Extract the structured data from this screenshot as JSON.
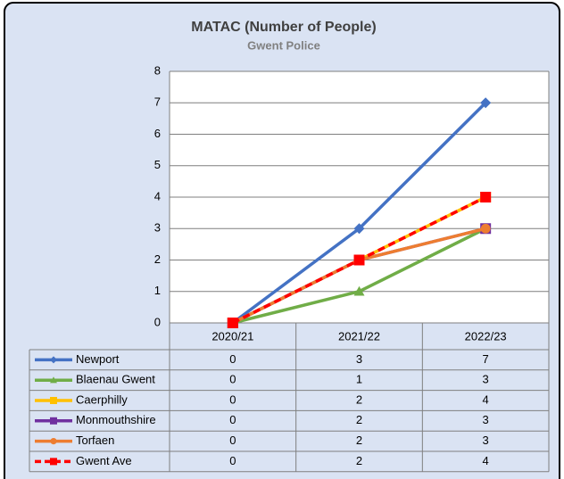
{
  "chart_data": {
    "type": "line",
    "title": "MATAC (Number of People)",
    "subtitle": "Gwent Police",
    "categories": [
      "2020/21",
      "2021/22",
      "2022/23"
    ],
    "series": [
      {
        "name": "Newport",
        "color": "#4472c4",
        "marker": "diamond",
        "values": [
          0,
          3,
          7
        ]
      },
      {
        "name": "Blaenau Gwent",
        "color": "#70ad47",
        "marker": "triangle",
        "values": [
          0,
          1,
          3
        ]
      },
      {
        "name": "Caerphilly",
        "color": "#ffc000",
        "marker": "square",
        "values": [
          0,
          2,
          4
        ]
      },
      {
        "name": "Monmouthshire",
        "color": "#7030a0",
        "marker": "square",
        "values": [
          0,
          2,
          3
        ]
      },
      {
        "name": "Torfaen",
        "color": "#ed7d31",
        "marker": "circle",
        "values": [
          0,
          2,
          3
        ]
      },
      {
        "name": "Gwent Ave",
        "color": "#ff0000",
        "marker": "square",
        "dashed": true,
        "values": [
          0,
          2,
          4
        ]
      }
    ],
    "ylim": [
      0,
      8
    ],
    "yticks": [
      0,
      1,
      2,
      3,
      4,
      5,
      6,
      7,
      8
    ],
    "grid": true,
    "data_table": true
  }
}
